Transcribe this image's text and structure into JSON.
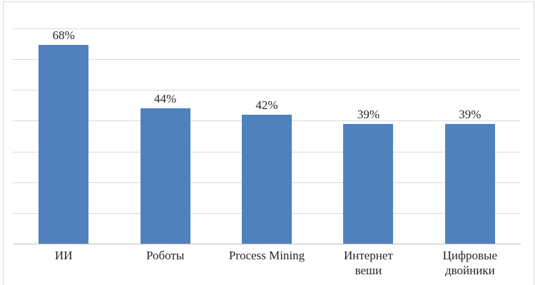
{
  "chart_data": {
    "type": "bar",
    "categories": [
      "ИИ",
      "Роботы",
      "Process Mining",
      "Интернет\nвеши",
      "Цифровые\nдвойники"
    ],
    "values": [
      68,
      44,
      42,
      39,
      39
    ],
    "value_labels": [
      "68%",
      "44%",
      "42%",
      "39%",
      "39%"
    ],
    "title": "",
    "xlabel": "",
    "ylabel": "",
    "ylim": [
      0,
      70
    ],
    "gridline_step_percent": 10,
    "grid": "horizontal",
    "legend": "none",
    "colors": {
      "bar": "#4f81bd",
      "gridline": "#d9d9d9",
      "axis_line": "#bfbfbf",
      "text": "#262626",
      "frame_border": "#d9d9d9",
      "background": "#ffffff"
    }
  }
}
